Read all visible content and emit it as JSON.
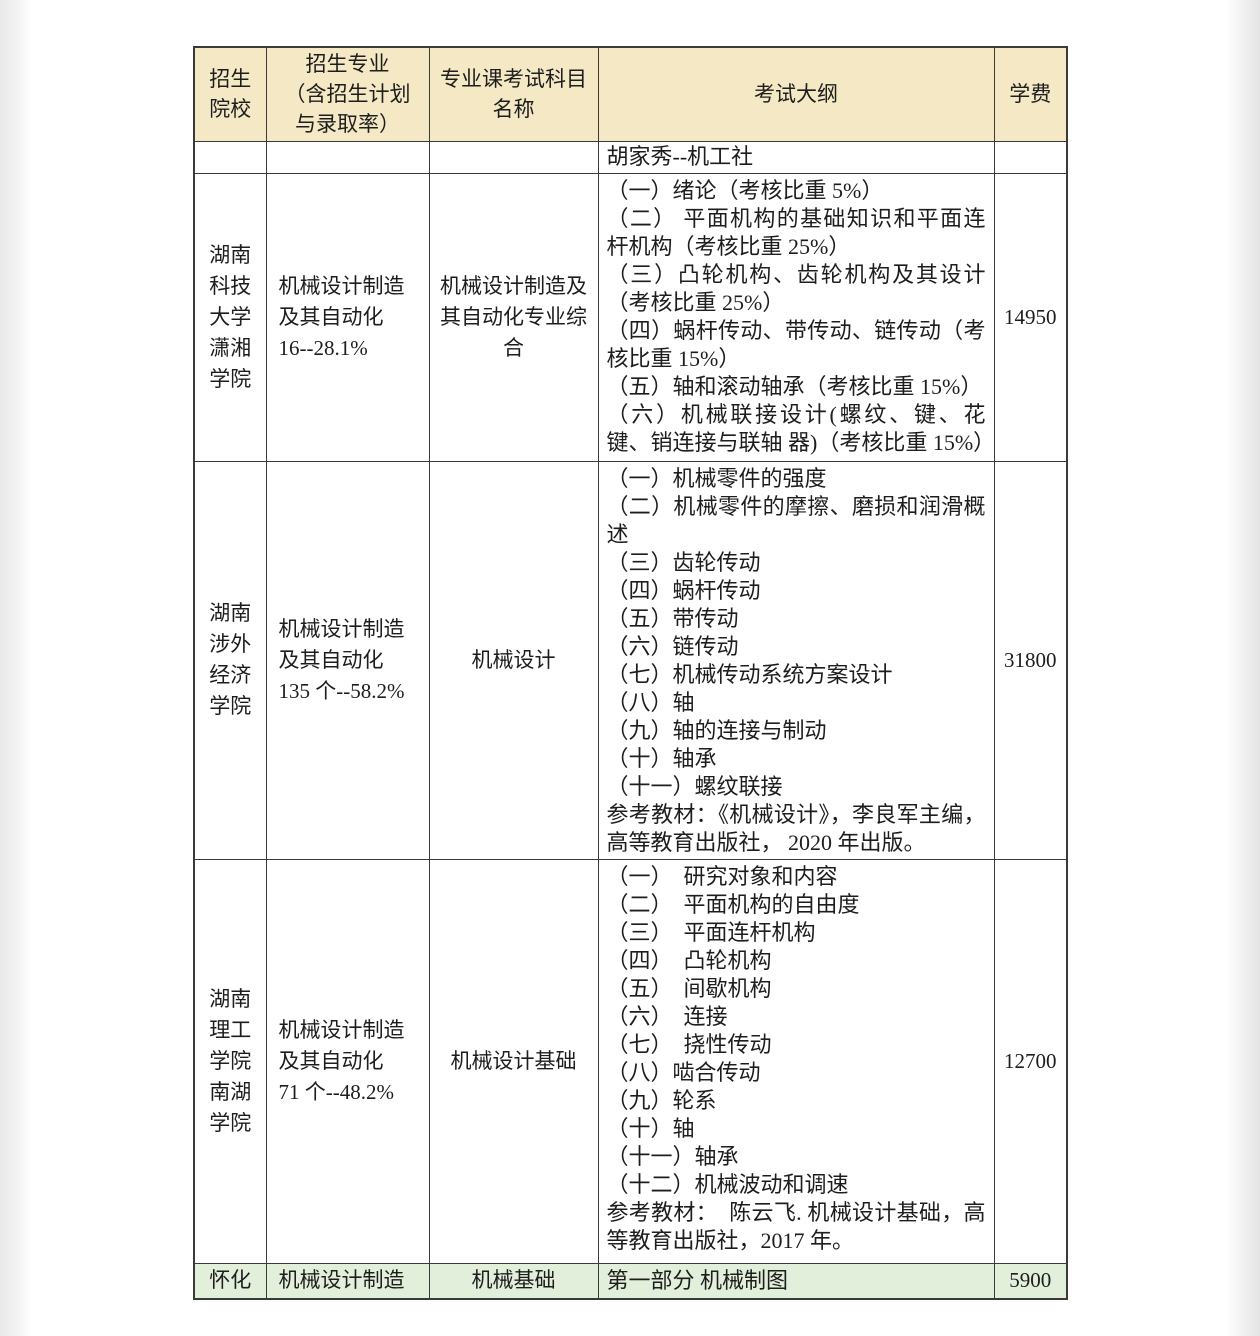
{
  "colors": {
    "header_bg": "#f5e9c5",
    "highlight_row_bg": "#e2efda",
    "border": "#3a3a3a",
    "text": "#1d1d1d"
  },
  "table": {
    "columns": {
      "college": "招生\n院校",
      "major": "招生专业\n（含招生计划\n与录取率）",
      "subject": "专业课考试科目\n名称",
      "syllabus": "考试大纲",
      "tuition": "学费"
    },
    "rows": [
      {
        "college": "",
        "major": "",
        "subject": "",
        "syllabus": "胡家秀--机工社",
        "tuition": ""
      },
      {
        "college": "湖南\n科技\n大学\n潇湘\n学院",
        "major": "机械设计制造\n及其自动化\n16--28.1%",
        "subject": "机械设计制造及\n其自动化专业综\n合",
        "syllabus": "（一）绪论（考核比重 5%）\n（二） 平面机构的基础知识和平面连杆机构（考核比重  25%）\n（三）凸轮机构、齿轮机构及其设计（考核比重 25%）\n（四）蜗杆传动、带传动、链传动（考核比重 15%）\n（五）轴和滚动轴承（考核比重 15%）\n（六）机械联接设计(螺纹、键、花键、销连接与联轴 器)（考核比重 15%）",
        "tuition": "14950"
      },
      {
        "college": "湖南\n涉外\n经济\n学院",
        "major": "机械设计制造\n及其自动化\n135 个--58.2%",
        "subject": "机械设计",
        "syllabus": "（一）机械零件的强度\n（二）机械零件的摩擦、磨损和润滑概述\n（三）齿轮传动\n（四）蜗杆传动\n（五）带传动\n（六）链传动\n（七）机械传动系统方案设计\n（八）轴\n（九）轴的连接与制动\n（十）轴承\n（十一）螺纹联接\n参考教材：《机械设计》，李良军主编，高等教育出版社， 2020 年出版。",
        "tuition": "31800"
      },
      {
        "college": "湖南\n理工\n学院\n南湖\n学院",
        "major": "机械设计制造\n及其自动化\n71 个--48.2%",
        "subject": "机械设计基础",
        "syllabus": "（一）　研究对象和内容\n（二）　平面机构的自由度\n（三）　平面连杆机构\n（四）　凸轮机构\n（五）　间歇机构\n（六）　连接\n（七）　挠性传动\n（八）啮合传动\n（九）轮系\n（十）轴\n（十一）轴承\n（十二）机械波动和调速\n参考教材：　陈云飞. 机械设计基础，高等教育出版社，2017 年。",
        "tuition": "12700"
      },
      {
        "college": "怀化",
        "major": "机械设计制造",
        "subject": "机械基础",
        "syllabus": "第一部分  机械制图",
        "tuition": "5900"
      }
    ]
  }
}
